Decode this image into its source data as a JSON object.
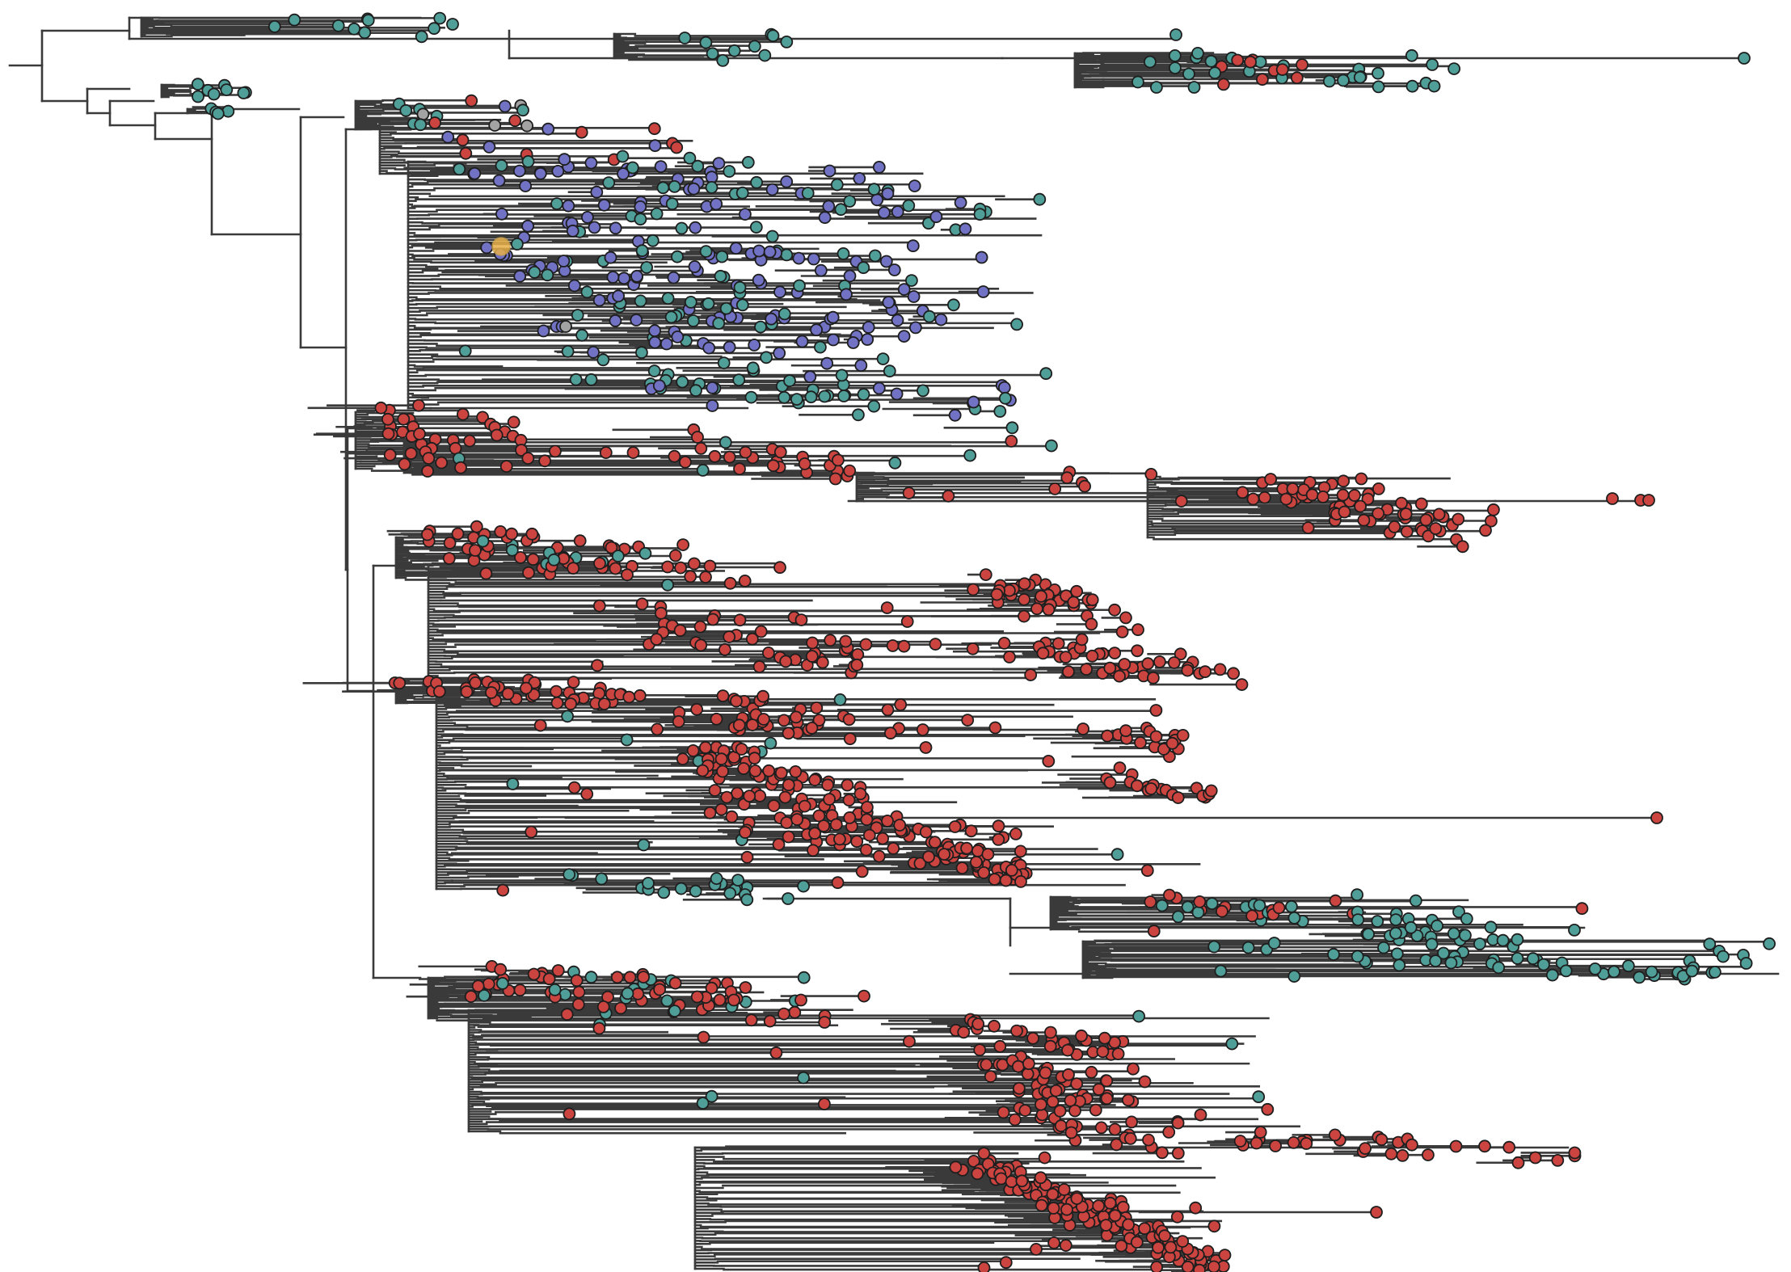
{
  "figure": {
    "kind": "phylogenetic-tree",
    "orientation": "rectangular-left-to-right",
    "background": "#ffffff",
    "branch_color": "#3a3a3a",
    "tip_outline_color": "#1e1e1e",
    "tip_groups": [
      {
        "id": "teal",
        "color": "#4f9f98"
      },
      {
        "id": "red",
        "color": "#cc4440"
      },
      {
        "id": "purple",
        "color": "#7272c4"
      },
      {
        "id": "gray",
        "color": "#a3a3a3"
      },
      {
        "id": "highlight",
        "color": "#e8b04a"
      }
    ]
  },
  "clades": [
    {
      "id": "clade-top-teal",
      "group": "teal",
      "label": ""
    },
    {
      "id": "clade-mixed-purple",
      "group": "purple",
      "label": ""
    },
    {
      "id": "clade-red-upper",
      "group": "red",
      "label": ""
    },
    {
      "id": "clade-red-middle",
      "group": "red",
      "label": ""
    },
    {
      "id": "clade-red-lower",
      "group": "red",
      "label": ""
    },
    {
      "id": "clade-red-bottom",
      "group": "red",
      "label": ""
    }
  ]
}
